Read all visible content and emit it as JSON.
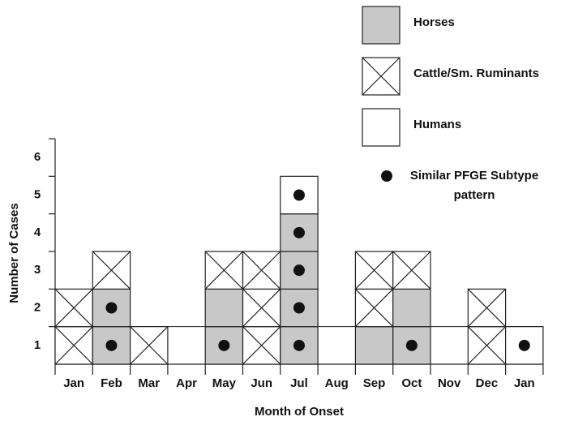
{
  "chart_data": {
    "type": "box-stack",
    "x_label": "Month of Onset",
    "y_label": "Number of Cases",
    "categories": [
      "Jan",
      "Feb",
      "Mar",
      "Apr",
      "May",
      "Jun",
      "Jul",
      "Aug",
      "Sep",
      "Oct",
      "Nov",
      "Dec",
      "Jan"
    ],
    "series": [
      {
        "name": "Horses",
        "color": "#c8c8c8",
        "cross": false,
        "values": [
          0,
          2,
          0,
          0,
          2,
          0,
          4,
          0,
          1,
          2,
          0,
          0,
          0
        ]
      },
      {
        "name": "Cattle/Sm. Ruminants",
        "color": "#ffffff",
        "cross": true,
        "values": [
          2,
          1,
          1,
          0,
          1,
          3,
          0,
          0,
          2,
          1,
          0,
          2,
          0
        ]
      },
      {
        "name": "Humans",
        "color": "#ffffff",
        "cross": false,
        "values": [
          0,
          0,
          0,
          0,
          0,
          0,
          1,
          0,
          0,
          0,
          0,
          0,
          1
        ]
      }
    ],
    "dots": {
      "name": "Similar PFGE Subtype pattern",
      "color": "#111111",
      "values": [
        0,
        2,
        0,
        0,
        1,
        0,
        5,
        0,
        0,
        1,
        0,
        0,
        1
      ]
    },
    "ylim": [
      0,
      6
    ],
    "yticks": [
      1,
      2,
      3,
      4,
      5,
      6
    ]
  }
}
